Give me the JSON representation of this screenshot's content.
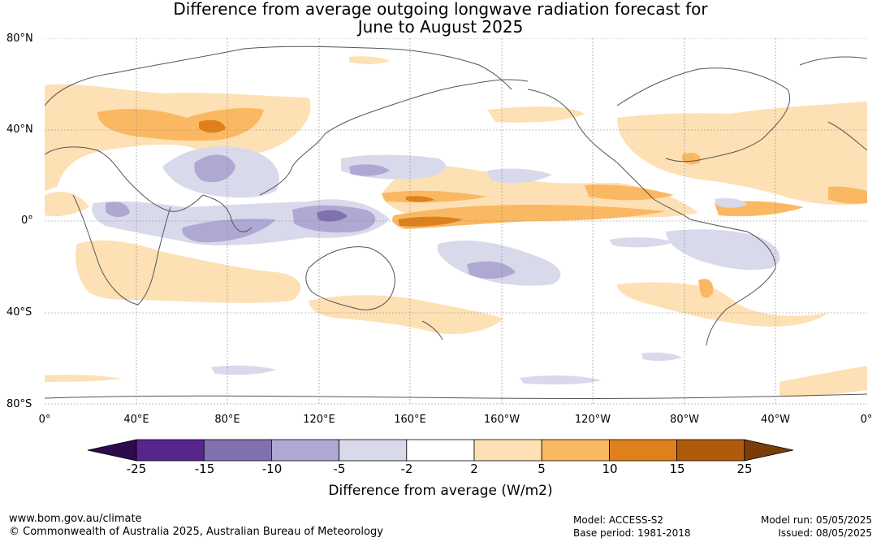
{
  "title_line1": "Difference from average outgoing longwave radiation forecast for",
  "title_line2": "June to August 2025",
  "lat_labels": [
    "80°N",
    "40°N",
    "0°",
    "40°S",
    "80°S"
  ],
  "lon_labels": [
    "0°",
    "40°E",
    "80°E",
    "120°E",
    "160°E",
    "160°W",
    "120°W",
    "80°W",
    "40°W",
    "0°"
  ],
  "colorbar": {
    "ticks": [
      "-25",
      "-15",
      "-10",
      "-5",
      "-2",
      "2",
      "5",
      "10",
      "15",
      "25"
    ],
    "colors": [
      "#2e0b4d",
      "#58258c",
      "#8070ae",
      "#aea8d2",
      "#d9d9ec",
      "#ffffff",
      "#fde0b4",
      "#fbb862",
      "#e0801a",
      "#b05a0c",
      "#7a3d07"
    ],
    "label": "Difference from average (W/m2)"
  },
  "footer": {
    "url": "www.bom.gov.au/climate",
    "copyright": "© Commonwealth of Australia 2025, Australian Bureau of Meteorology",
    "model": "Model: ACCESS-S2",
    "base_period": "Base period: 1981-2018",
    "model_run": "Model run: 05/05/2025",
    "issued": "Issued: 08/05/2025"
  }
}
